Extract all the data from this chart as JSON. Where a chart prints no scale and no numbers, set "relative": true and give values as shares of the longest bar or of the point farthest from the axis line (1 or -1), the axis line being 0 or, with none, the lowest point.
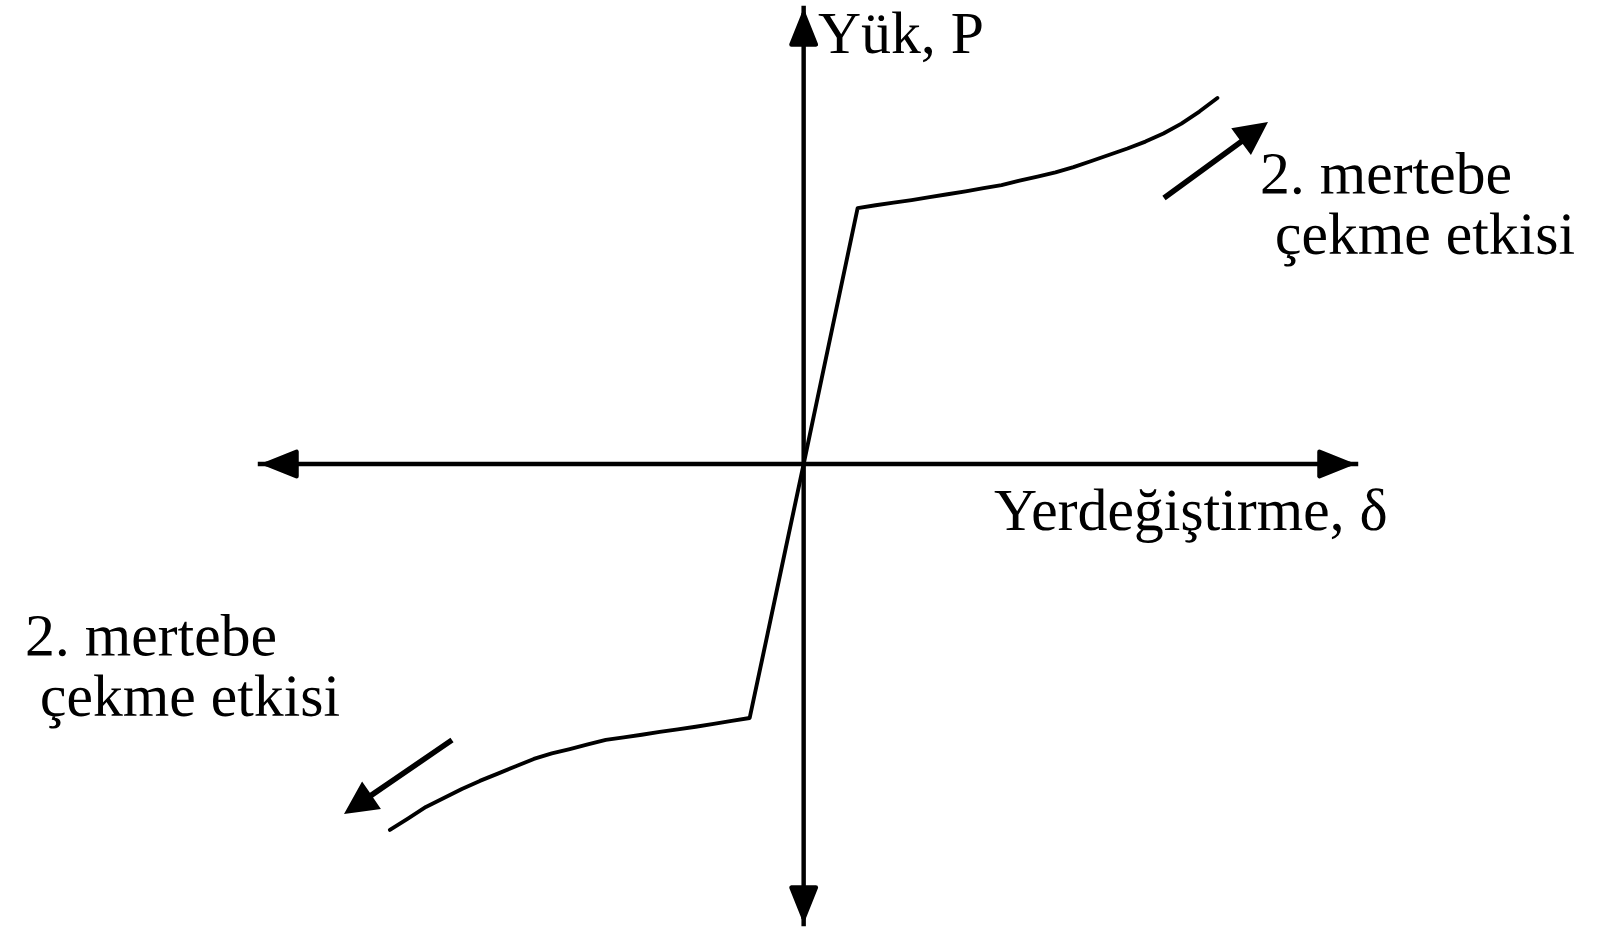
{
  "chart_data": {
    "type": "line",
    "xlabel": "Yerdeğiştirme, δ",
    "ylabel": "Yük, P",
    "relative": true,
    "categories": [
      null,
      null,
      null,
      null,
      null,
      null,
      null,
      null,
      null,
      null,
      null,
      null,
      null,
      null,
      null,
      null,
      null,
      null,
      null,
      null,
      null,
      null,
      null,
      null,
      null,
      null,
      null,
      null,
      null,
      null,
      null,
      null,
      null,
      null,
      null,
      null,
      null,
      null,
      null,
      null,
      null,
      null,
      null,
      null,
      null,
      null,
      null
    ],
    "series": [
      {
        "color": "#000000",
        "values": [
          -1.0,
          -0.969,
          -0.937,
          -0.913,
          -0.888,
          -0.866,
          -0.846,
          -0.826,
          -0.806,
          -0.791,
          -0.779,
          -0.766,
          -0.754,
          -0.747,
          -0.74,
          -0.732,
          -0.725,
          -0.718,
          -0.71,
          -0.702,
          -0.694,
          -0.463,
          -0.231,
          0,
          0.233,
          0.466,
          0.699,
          0.707,
          0.714,
          0.721,
          0.729,
          0.737,
          0.745,
          0.754,
          0.762,
          0.774,
          0.785,
          0.797,
          0.811,
          0.828,
          0.845,
          0.862,
          0.881,
          0.903,
          0.93,
          0.963,
          1.0
        ]
      }
    ],
    "annotations": [
      "2. mertebe\n çekme etkisi",
      "2. mertebe\n çekme etkisi"
    ]
  }
}
